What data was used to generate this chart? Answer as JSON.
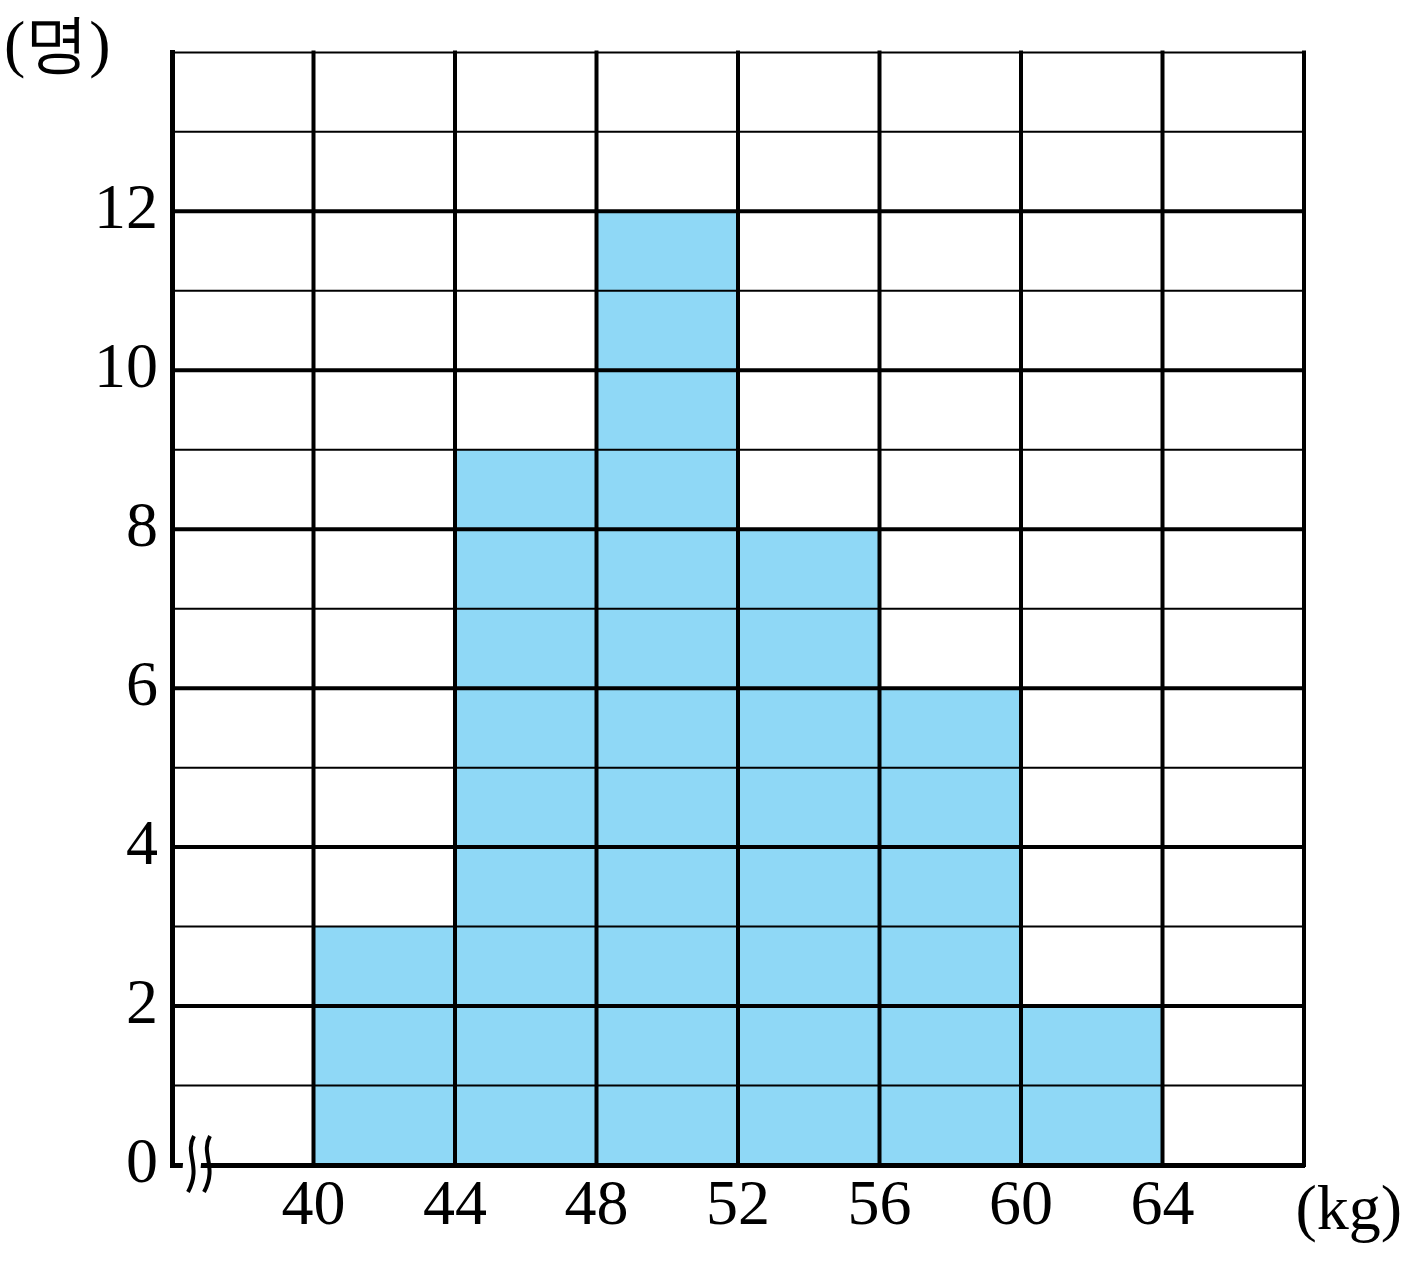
{
  "chart_data": {
    "type": "histogram",
    "xlabel": "(kg)",
    "ylabel": "(명)",
    "bins": [
      40,
      44,
      48,
      52,
      56,
      60,
      64
    ],
    "values": [
      3,
      9,
      12,
      8,
      6,
      2
    ],
    "color": "#8fd8f6",
    "xlim": [
      36,
      68
    ],
    "xticks": [
      40,
      44,
      48,
      52,
      56,
      60,
      64,
      {
        "value": 68,
        "label": null
      }
    ],
    "ylim": [
      0,
      14
    ],
    "yticks": [
      0,
      {
        "value": 1,
        "label": null
      },
      2,
      {
        "value": 3,
        "label": null
      },
      4,
      {
        "value": 5,
        "label": null
      },
      6,
      {
        "value": 7,
        "label": null
      },
      8,
      {
        "value": 9,
        "label": null
      },
      10,
      {
        "value": 11,
        "label": null
      },
      12,
      {
        "value": 13,
        "label": null
      },
      {
        "value": 14,
        "label": null
      }
    ],
    "grid": true,
    "legend": false
  }
}
